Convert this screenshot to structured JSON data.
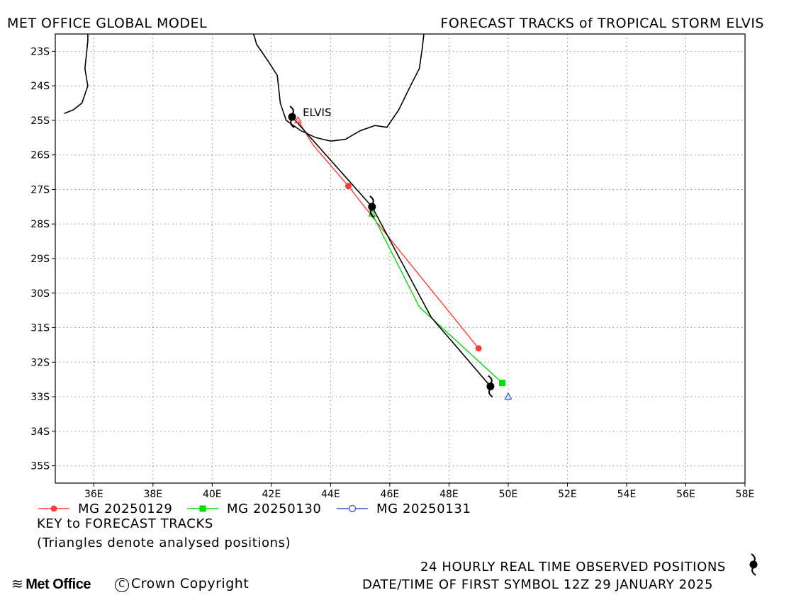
{
  "header": {
    "left": "MET OFFICE GLOBAL MODEL",
    "right": "FORECAST TRACKS of TROPICAL STORM ELVIS"
  },
  "chart_data": {
    "type": "line",
    "xlim": [
      34.7,
      58.0
    ],
    "ylim": [
      -35.5,
      -22.5
    ],
    "x_ticks": [
      36,
      38,
      40,
      42,
      44,
      46,
      48,
      50,
      52,
      54,
      56,
      58
    ],
    "x_tick_labels": [
      "36E",
      "38E",
      "40E",
      "42E",
      "44E",
      "46E",
      "48E",
      "50E",
      "52E",
      "54E",
      "56E",
      "58E"
    ],
    "y_ticks": [
      -23,
      -24,
      -25,
      -26,
      -27,
      -28,
      -29,
      -30,
      -31,
      -32,
      -33,
      -34,
      -35
    ],
    "y_tick_labels": [
      "23S",
      "24S",
      "25S",
      "26S",
      "27S",
      "28S",
      "29S",
      "30S",
      "31S",
      "32S",
      "33S",
      "34S",
      "35S"
    ],
    "grid": true,
    "storm_label": "ELVIS",
    "observed_track": {
      "color": "#000000",
      "lon": [
        42.7,
        45.4,
        47.4,
        49.4
      ],
      "lat": [
        -24.9,
        -27.5,
        -30.7,
        -32.7
      ],
      "symbols_lon": [
        42.7,
        45.4,
        49.4
      ],
      "symbols_lat": [
        -24.9,
        -27.5,
        -32.7
      ]
    },
    "series": [
      {
        "name": "MG 20250129",
        "color": "#ff3b3b",
        "marker": "circle",
        "lon": [
          42.9,
          43.4,
          44.6,
          45.6,
          49.0
        ],
        "lat": [
          -25.0,
          -25.7,
          -26.9,
          -28.0,
          -31.6
        ],
        "marker_lon": [
          44.6,
          49.0
        ],
        "marker_lat": [
          -26.9,
          -31.6
        ],
        "analysis_lon": 42.9,
        "analysis_lat": -25.0
      },
      {
        "name": "MG 20250130",
        "color": "#00dd00",
        "marker": "square",
        "lon": [
          45.3,
          45.4,
          47.0,
          49.8
        ],
        "lat": [
          -27.6,
          -27.7,
          -30.4,
          -32.6
        ],
        "marker_lon": [
          49.8
        ],
        "marker_lat": [
          -32.6
        ],
        "analysis_lon": 45.4,
        "analysis_lat": -27.7
      },
      {
        "name": "MG 20250131",
        "color": "#3355dd",
        "marker": "circle-open",
        "lon": [],
        "lat": [],
        "marker_lon": [],
        "marker_lat": [],
        "analysis_lon": 50.0,
        "analysis_lat": -33.0
      }
    ],
    "coastlines": [
      [
        [
          35.0,
          -24.8
        ],
        [
          35.3,
          -24.7
        ],
        [
          35.6,
          -24.5
        ],
        [
          35.8,
          -24.0
        ],
        [
          35.7,
          -23.5
        ],
        [
          35.8,
          -22.7
        ],
        [
          35.8,
          -22.5
        ]
      ],
      [
        [
          41.4,
          -22.5
        ],
        [
          41.5,
          -22.8
        ],
        [
          41.9,
          -23.3
        ],
        [
          42.2,
          -23.7
        ],
        [
          42.3,
          -24.5
        ],
        [
          42.5,
          -25.0
        ],
        [
          43.0,
          -25.3
        ],
        [
          43.5,
          -25.5
        ],
        [
          44.0,
          -25.6
        ],
        [
          44.5,
          -25.55
        ],
        [
          45.0,
          -25.3
        ],
        [
          45.5,
          -25.15
        ],
        [
          45.9,
          -25.2
        ],
        [
          46.3,
          -24.7
        ],
        [
          46.7,
          -24.0
        ],
        [
          47.0,
          -23.5
        ],
        [
          47.1,
          -22.9
        ],
        [
          47.15,
          -22.5
        ]
      ]
    ]
  },
  "key": {
    "title": "KEY to FORECAST TRACKS",
    "note": "(Triangles denote analysed positions)"
  },
  "footer": {
    "logo": "Met Office",
    "copyright": "Crown Copyright",
    "copyright_symbol": "C",
    "observed_note": "24 HOURLY REAL TIME OBSERVED POSITIONS",
    "first_symbol": "DATE/TIME OF FIRST SYMBOL 12Z 29 JANUARY 2025"
  }
}
